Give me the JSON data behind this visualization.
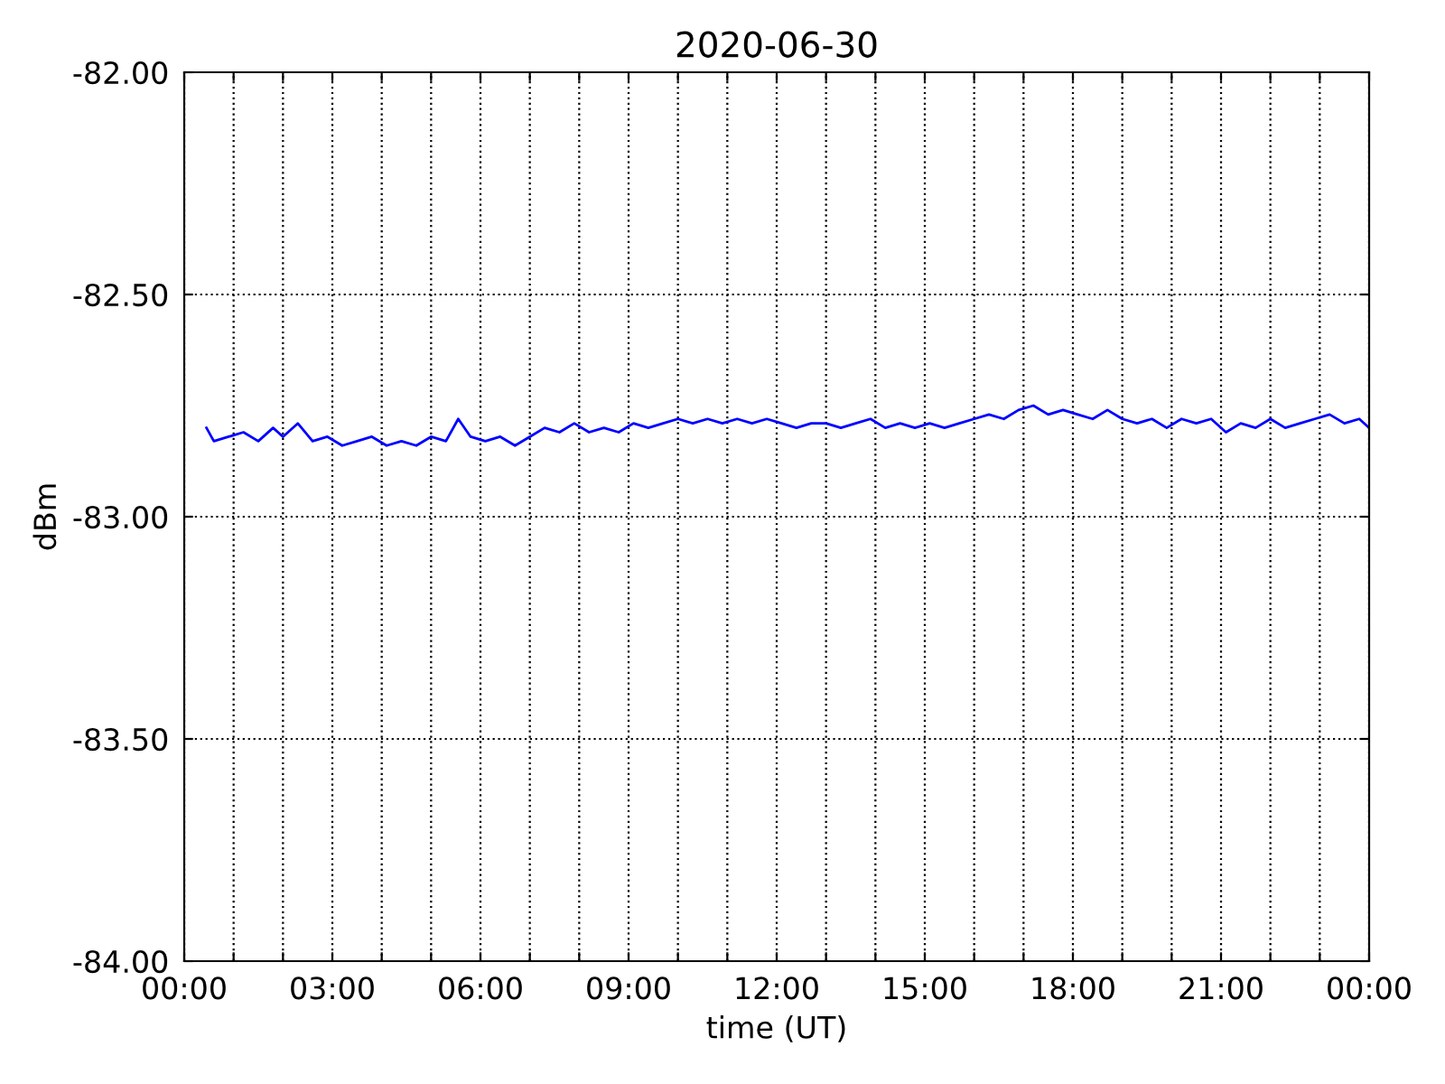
{
  "chart_data": {
    "type": "line",
    "title": "2020-06-30",
    "xlabel": "time (UT)",
    "ylabel": "dBm",
    "x": [
      0.45,
      0.6,
      0.9,
      1.2,
      1.5,
      1.8,
      2.0,
      2.3,
      2.6,
      2.9,
      3.2,
      3.5,
      3.8,
      4.1,
      4.4,
      4.7,
      5.0,
      5.3,
      5.55,
      5.8,
      6.1,
      6.4,
      6.7,
      7.0,
      7.3,
      7.6,
      7.9,
      8.2,
      8.5,
      8.8,
      9.1,
      9.4,
      9.7,
      10.0,
      10.3,
      10.6,
      10.9,
      11.2,
      11.5,
      11.8,
      12.1,
      12.4,
      12.7,
      13.0,
      13.3,
      13.6,
      13.9,
      14.2,
      14.5,
      14.8,
      15.1,
      15.4,
      15.7,
      16.0,
      16.3,
      16.6,
      16.9,
      17.2,
      17.5,
      17.8,
      18.1,
      18.4,
      18.7,
      19.0,
      19.3,
      19.6,
      19.9,
      20.2,
      20.5,
      20.8,
      21.1,
      21.4,
      21.7,
      22.0,
      22.3,
      22.6,
      22.9,
      23.2,
      23.5,
      23.8,
      24.0
    ],
    "series": [
      {
        "color": "#0000ff",
        "values": [
          -82.8,
          -82.83,
          -82.82,
          -82.81,
          -82.83,
          -82.8,
          -82.82,
          -82.79,
          -82.83,
          -82.82,
          -82.84,
          -82.83,
          -82.82,
          -82.84,
          -82.83,
          -82.84,
          -82.82,
          -82.83,
          -82.78,
          -82.82,
          -82.83,
          -82.82,
          -82.84,
          -82.82,
          -82.8,
          -82.81,
          -82.79,
          -82.81,
          -82.8,
          -82.81,
          -82.79,
          -82.8,
          -82.79,
          -82.78,
          -82.79,
          -82.78,
          -82.79,
          -82.78,
          -82.79,
          -82.78,
          -82.79,
          -82.8,
          -82.79,
          -82.79,
          -82.8,
          -82.79,
          -82.78,
          -82.8,
          -82.79,
          -82.8,
          -82.79,
          -82.8,
          -82.79,
          -82.78,
          -82.77,
          -82.78,
          -82.76,
          -82.75,
          -82.77,
          -82.76,
          -82.77,
          -82.78,
          -82.76,
          -82.78,
          -82.79,
          -82.78,
          -82.8,
          -82.78,
          -82.79,
          -82.78,
          -82.81,
          -82.79,
          -82.8,
          -82.78,
          -82.8,
          -82.79,
          -82.78,
          -82.77,
          -82.79,
          -82.78,
          -82.8
        ]
      }
    ],
    "xlim": [
      0,
      24
    ],
    "xticks": [
      {
        "value": 0,
        "label": "00:00"
      },
      {
        "value": 1,
        "label": null
      },
      {
        "value": 2,
        "label": null
      },
      {
        "value": 3,
        "label": "03:00"
      },
      {
        "value": 4,
        "label": null
      },
      {
        "value": 5,
        "label": null
      },
      {
        "value": 6,
        "label": "06:00"
      },
      {
        "value": 7,
        "label": null
      },
      {
        "value": 8,
        "label": null
      },
      {
        "value": 9,
        "label": "09:00"
      },
      {
        "value": 10,
        "label": null
      },
      {
        "value": 11,
        "label": null
      },
      {
        "value": 12,
        "label": "12:00"
      },
      {
        "value": 13,
        "label": null
      },
      {
        "value": 14,
        "label": null
      },
      {
        "value": 15,
        "label": "15:00"
      },
      {
        "value": 16,
        "label": null
      },
      {
        "value": 17,
        "label": null
      },
      {
        "value": 18,
        "label": "18:00"
      },
      {
        "value": 19,
        "label": null
      },
      {
        "value": 20,
        "label": null
      },
      {
        "value": 21,
        "label": "21:00"
      },
      {
        "value": 22,
        "label": null
      },
      {
        "value": 23,
        "label": null
      },
      {
        "value": 24,
        "label": "00:00"
      }
    ],
    "ylim": [
      -84,
      -82
    ],
    "yticks": [
      {
        "value": -84,
        "label": "-84.00"
      },
      {
        "value": -83.5,
        "label": "-83.50"
      },
      {
        "value": -83,
        "label": "-83.00"
      },
      {
        "value": -82.5,
        "label": "-82.50"
      },
      {
        "value": -82,
        "label": "-82.00"
      }
    ],
    "grid": true,
    "line_style": "solid",
    "marker": "none"
  }
}
